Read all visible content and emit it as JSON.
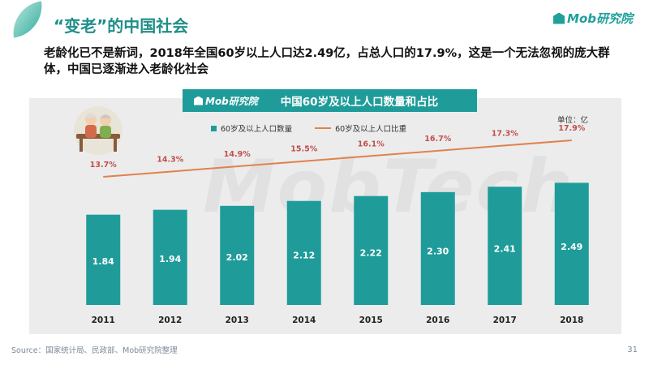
{
  "header": {
    "title": "“变老”的中国社会",
    "brand": "Mob研究院"
  },
  "subtitle": "老龄化已不是新词，2018年全国60岁以上人口达2.49亿，占总人口的17.9%，这是一个无法忽视的庞大群体，中国已逐渐进入老龄化社会",
  "chart_header": {
    "logo": "Mob研究院",
    "title": "中国60岁及以上人口数量和占比"
  },
  "unit": "单位：亿",
  "watermark": "MobTech",
  "footer": {
    "source": "Source：国家统计局、民政部、Mob研究院整理",
    "page": "31"
  },
  "colors": {
    "bar": "#1f9c9a",
    "line": "#e0824e",
    "line_label": "#c0504d",
    "title": "#1f8f89"
  },
  "chart_data": {
    "type": "bar",
    "title": "中国60岁及以上人口数量和占比",
    "categories": [
      "2011",
      "2012",
      "2013",
      "2014",
      "2015",
      "2016",
      "2017",
      "2018"
    ],
    "series": [
      {
        "name": "60岁及以上人口数量",
        "type": "bar",
        "values": [
          1.84,
          1.94,
          2.02,
          2.12,
          2.22,
          2.3,
          2.41,
          2.49
        ],
        "labels": [
          "1.84",
          "1.94",
          "2.02",
          "2.12",
          "2.22",
          "2.30",
          "2.41",
          "2.49"
        ]
      },
      {
        "name": "60岁及以上人口比重",
        "type": "line",
        "values": [
          13.7,
          14.3,
          14.9,
          15.5,
          16.1,
          16.7,
          17.3,
          17.9
        ],
        "labels": [
          "13.7%",
          "14.3%",
          "14.9%",
          "15.5%",
          "16.1%",
          "16.7%",
          "17.3%",
          "17.9%"
        ]
      }
    ],
    "ylim": [
      0,
      2.6
    ],
    "y2lim": [
      5,
      19
    ],
    "unit": "单位：亿",
    "legend": "top",
    "grid": false
  }
}
